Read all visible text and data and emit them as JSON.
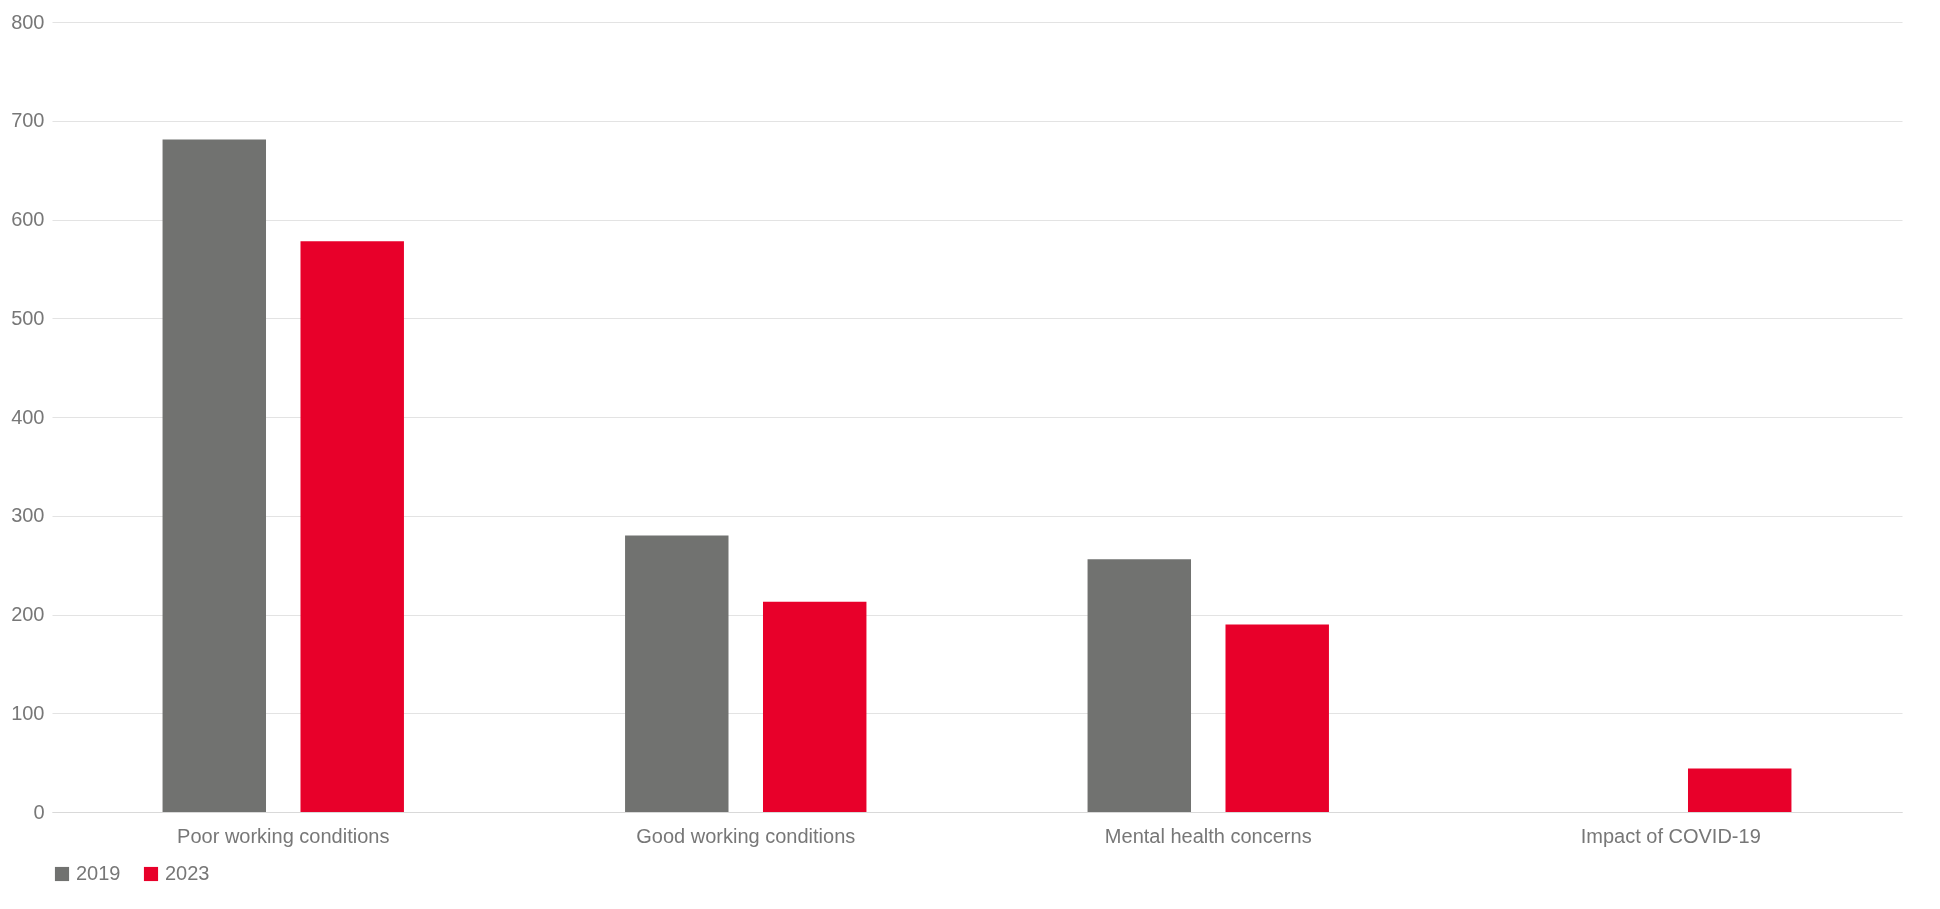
{
  "chart_data": {
    "type": "bar",
    "categories": [
      "Poor working conditions",
      "Good working conditions",
      "Mental health concerns",
      "Impact of COVID-19"
    ],
    "series": [
      {
        "name": "2019",
        "color": "#717270",
        "values": [
          681,
          280,
          256,
          null
        ]
      },
      {
        "name": "2023",
        "color": "#e8002a",
        "values": [
          578,
          213,
          190,
          44
        ]
      }
    ],
    "ylim": [
      0,
      800
    ],
    "yticks": [
      0,
      100,
      200,
      300,
      400,
      500,
      600,
      700,
      800
    ],
    "grid": "y",
    "legend": "bottom"
  }
}
